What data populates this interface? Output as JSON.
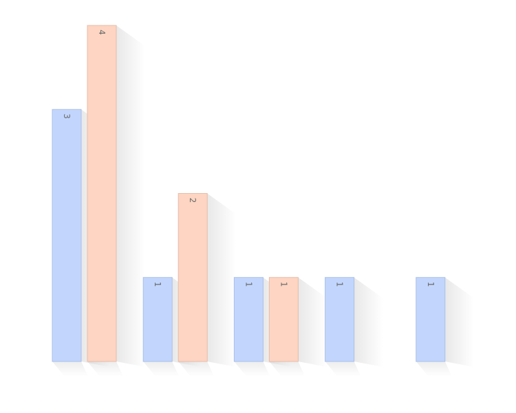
{
  "chart_data": {
    "type": "bar",
    "categories": [
      "",
      "",
      "",
      "",
      ""
    ],
    "series": [
      {
        "values": [
          3,
          1,
          1,
          1,
          1
        ]
      },
      {
        "values": [
          4,
          2,
          1,
          null,
          null
        ]
      }
    ],
    "ylim": [
      0,
      4
    ],
    "grid": false,
    "legend": "none",
    "colors": {
      "series_fill": [
        "#c2d6fd",
        "#fdd5c2"
      ],
      "series_stroke": [
        "#a9bfe8",
        "#e8bca9"
      ],
      "label": "#6b6b6b"
    }
  }
}
